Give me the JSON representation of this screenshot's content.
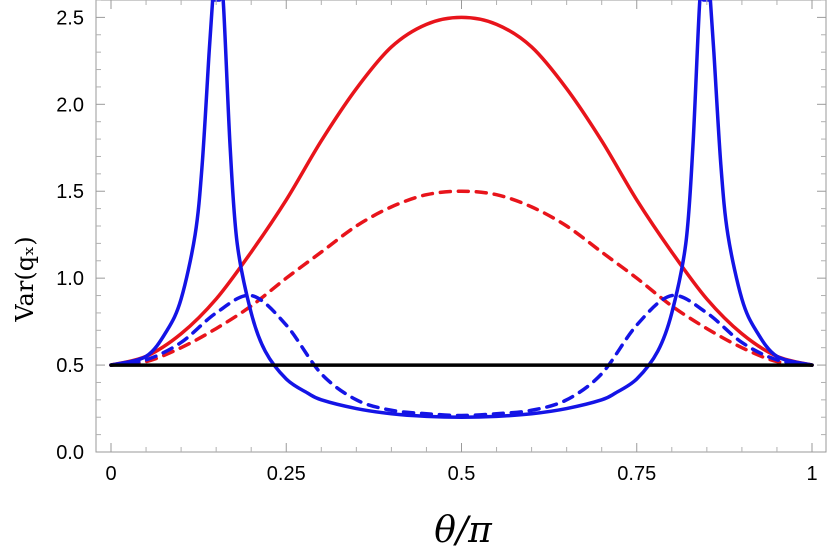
{
  "chart_data": {
    "type": "line",
    "xlabel": "θ/π",
    "ylabel": "Var(qₓ)",
    "xlim": [
      0,
      1
    ],
    "ylim": [
      0,
      2.6
    ],
    "xticks": [
      0,
      0.25,
      0.5,
      0.75,
      1
    ],
    "xtick_labels": [
      "0",
      "0.25",
      "0.5",
      "0.75",
      "1"
    ],
    "yticks": [
      0.0,
      0.5,
      1.0,
      1.5,
      2.0,
      2.5
    ],
    "ytick_labels": [
      "0.0",
      "0.5",
      "1.0",
      "1.5",
      "2.0",
      "2.5"
    ],
    "grid": false,
    "series": [
      {
        "color": "#e8141b",
        "style": "solid",
        "x": [
          0,
          0.05,
          0.1,
          0.15,
          0.2,
          0.25,
          0.3,
          0.35,
          0.4,
          0.45,
          0.5,
          0.55,
          0.6,
          0.65,
          0.7,
          0.75,
          0.8,
          0.85,
          0.9,
          0.95,
          1
        ],
        "values": [
          0.5,
          0.55,
          0.68,
          0.88,
          1.15,
          1.45,
          1.79,
          2.09,
          2.33,
          2.46,
          2.5,
          2.46,
          2.33,
          2.09,
          1.79,
          1.45,
          1.15,
          0.88,
          0.68,
          0.55,
          0.5
        ]
      },
      {
        "color": "#e8141b",
        "style": "dashed",
        "x": [
          0,
          0.05,
          0.1,
          0.15,
          0.2,
          0.25,
          0.3,
          0.35,
          0.4,
          0.45,
          0.5,
          0.55,
          0.6,
          0.65,
          0.7,
          0.75,
          0.8,
          0.85,
          0.9,
          0.95,
          1
        ],
        "values": [
          0.5,
          0.52,
          0.6,
          0.71,
          0.84,
          1.0,
          1.15,
          1.3,
          1.41,
          1.48,
          1.5,
          1.48,
          1.41,
          1.3,
          1.15,
          1.0,
          0.84,
          0.71,
          0.6,
          0.52,
          0.5
        ]
      },
      {
        "color": "#1414e6",
        "style": "solid",
        "x": [
          0,
          0.05,
          0.08,
          0.1,
          0.12,
          0.13,
          0.14,
          0.145,
          0.1455,
          0.1465,
          0.15,
          0.155,
          0.16,
          0.17,
          0.18,
          0.2,
          0.22,
          0.25,
          0.28,
          0.3,
          0.35,
          0.4,
          0.45,
          0.5,
          0.55,
          0.6,
          0.65,
          0.7,
          0.72,
          0.75,
          0.78,
          0.8,
          0.82,
          0.83,
          0.84,
          0.845,
          0.8535,
          0.8545,
          0.855,
          0.86,
          0.87,
          0.88,
          0.9,
          0.92,
          0.95,
          1
        ],
        "values": [
          0.5,
          0.55,
          0.7,
          0.88,
          1.25,
          1.65,
          2.3,
          2.6,
          2.6,
          2.6,
          2.6,
          2.6,
          2.6,
          1.75,
          1.2,
          0.8,
          0.58,
          0.42,
          0.34,
          0.3,
          0.25,
          0.22,
          0.205,
          0.2,
          0.205,
          0.22,
          0.25,
          0.3,
          0.34,
          0.42,
          0.58,
          0.8,
          1.2,
          1.75,
          2.6,
          2.6,
          2.6,
          2.6,
          2.6,
          2.3,
          1.65,
          1.25,
          0.88,
          0.7,
          0.55,
          0.5
        ]
      },
      {
        "color": "#1414e6",
        "style": "dashed",
        "x": [
          0,
          0.05,
          0.1,
          0.15,
          0.2,
          0.25,
          0.3,
          0.35,
          0.4,
          0.45,
          0.5,
          0.55,
          0.6,
          0.65,
          0.7,
          0.75,
          0.8,
          0.85,
          0.9,
          0.95,
          1
        ],
        "values": [
          0.5,
          0.53,
          0.63,
          0.8,
          0.9,
          0.73,
          0.45,
          0.3,
          0.24,
          0.22,
          0.21,
          0.22,
          0.24,
          0.3,
          0.45,
          0.73,
          0.9,
          0.8,
          0.63,
          0.53,
          0.5
        ]
      },
      {
        "color": "#000000",
        "style": "solid",
        "x": [
          0,
          1
        ],
        "values": [
          0.5,
          0.5
        ]
      }
    ]
  }
}
